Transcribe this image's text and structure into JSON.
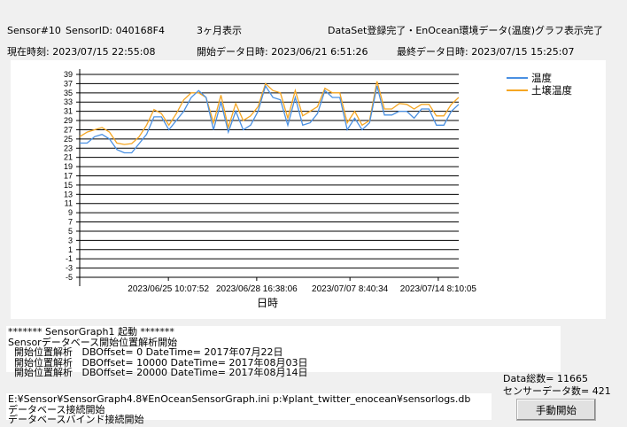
{
  "header": {
    "sensor_no": "Sensor#10",
    "sensor_id": "SensorID: 040168F4",
    "range": "3ヶ月表示",
    "status": "DataSet登録完了・EnOcean環境データ(温度)グラフ表示完了",
    "current_time": "現在時刻: 2023/07/15 22:55:08",
    "start_time": "開始データ日時: 2023/06/21 6:51:26",
    "last_time": "最終データ日時: 2023/07/15 15:25:07"
  },
  "chart_data": {
    "type": "line",
    "xlabel": "日時",
    "ylabel": "",
    "ylim": [
      -5,
      39
    ],
    "yticks": [
      "39",
      "37",
      "35",
      "33",
      "31",
      "29",
      "27",
      "25",
      "23",
      "21",
      "19",
      "17",
      "15",
      "13",
      "11",
      "9",
      "7",
      "5",
      "3",
      "1",
      "-1",
      "-3",
      "-5"
    ],
    "xlim": [
      "2023-06-21T06:51:26",
      "2023-07-15T15:25:07"
    ],
    "xticks": [
      {
        "label": "2023/06/25 10:07:52",
        "value": "2023-06-25T10:07:52"
      },
      {
        "label": "2023/06/28 16:38:06",
        "value": "2023-06-28T16:38:06"
      },
      {
        "label": "2023/07/07 8:40:34",
        "value": "2023-07-07T08:40:34"
      },
      {
        "label": "2023/07/14 8:10:05",
        "value": "2023-07-14T08:10:05"
      }
    ],
    "grid": "horizontal",
    "legend_placement": "top-right",
    "x": [
      "2023-06-21T07:00",
      "2023-06-21T17:00",
      "2023-06-22T04:00",
      "2023-06-22T14:00",
      "2023-06-23T00:00",
      "2023-06-23T10:00",
      "2023-06-23T20:00",
      "2023-06-24T09:00",
      "2023-06-24T23:00",
      "2023-06-25T08:00",
      "2023-06-25T13:00",
      "2023-06-25T23:00",
      "2023-06-26T07:00",
      "2023-06-26T20:00",
      "2023-06-27T04:00",
      "2023-06-27T19:00",
      "2023-06-28T02:00",
      "2023-06-28T16:00",
      "2023-06-29T00:00",
      "2023-06-29T06:00",
      "2023-06-29T09:00",
      "2023-06-29T22:00",
      "2023-06-30T07:00",
      "2023-06-30T22:00",
      "2023-07-01T12:00",
      "2023-07-02T02:00",
      "2023-07-02T12:00",
      "2023-07-03T02:00",
      "2023-07-03T08:00",
      "2023-07-03T16:00",
      "2023-07-04T01:00",
      "2023-07-04T20:00",
      "2023-07-05T06:00",
      "2023-07-05T18:00",
      "2023-07-06T01:00",
      "2023-07-06T14:00",
      "2023-07-06T22:00",
      "2023-07-07T10:00",
      "2023-07-08T04:00",
      "2023-07-08T13:00",
      "2023-07-09T06:00",
      "2023-07-09T13:00",
      "2023-07-10T08:00",
      "2023-07-11T02:00",
      "2023-07-11T21:00",
      "2023-07-12T15:00",
      "2023-07-13T05:00",
      "2023-07-14T05:00",
      "2023-07-14T17:00",
      "2023-07-15T05:00",
      "2023-07-15T12:00",
      "2023-07-15T15:25"
    ],
    "series": [
      {
        "name": "温度",
        "color": "#4a90e2",
        "values": [
          24.1,
          24.1,
          25.5,
          26,
          25,
          22.7,
          22,
          22,
          24,
          26,
          29.8,
          29.8,
          27,
          29,
          31,
          34,
          35.5,
          34,
          27,
          33,
          26.5,
          31,
          27,
          28,
          31,
          36.5,
          34,
          33.5,
          28,
          34,
          28,
          28.5,
          30.5,
          35.5,
          34,
          34,
          27,
          29.5,
          27,
          28.5,
          36.5,
          30.2,
          30.2,
          31,
          31,
          29.5,
          31.5,
          31.5,
          28,
          28,
          31,
          32.5
        ]
      },
      {
        "name": "土壌温度",
        "color": "#f5a623",
        "values": [
          25.5,
          26.5,
          27,
          27.5,
          26.5,
          24.1,
          23.8,
          24,
          25.5,
          28,
          31.4,
          30.5,
          28,
          30.5,
          33.5,
          35,
          35,
          34,
          28.5,
          34.5,
          27.5,
          32.7,
          29,
          30,
          32,
          37,
          35.5,
          35,
          29.5,
          35.5,
          30,
          31,
          32,
          36,
          35,
          35,
          28.5,
          31,
          28,
          29,
          37.5,
          31.5,
          31.5,
          32.7,
          32.5,
          31.5,
          32.5,
          32.5,
          30,
          30,
          32.5,
          34
        ]
      }
    ]
  },
  "log1": [
    "******* SensorGraph1 起動 *******",
    "Sensorデータベース開始位置解析開始",
    "  開始位置解析   DBOffset= 0 DateTime= 2017年07月22日",
    "  開始位置解析   DBOffset= 10000 DateTime= 2017年08月03日",
    "  開始位置解析   DBOffset= 20000 DateTime= 2017年08月14日"
  ],
  "log2": [
    "E:¥Sensor¥SensorGraph4.8¥EnOceanSensorGraph.ini p:¥plant_twitter_enocean¥sensorlogs.db",
    "データベース接続開始",
    "データベースバインド接続開始"
  ],
  "counts": {
    "total": "Data総数= 11665",
    "sensor": "センサーデータ数= 421"
  },
  "button": {
    "manual_start": "手動開始"
  }
}
